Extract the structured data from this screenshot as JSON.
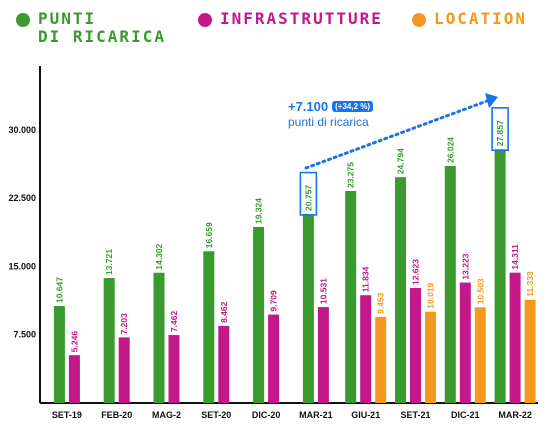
{
  "legend": [
    {
      "label": "Punti\ndi ricarica",
      "color": "#3a9a2e"
    },
    {
      "label": "Infrastrutture",
      "color": "#c2188a"
    },
    {
      "label": "Location",
      "color": "#f39a1e"
    }
  ],
  "annotation": {
    "value": "+7.100",
    "percent": "(+34,2 %)",
    "subtitle": "punti di ricarica"
  },
  "colors": {
    "accent": "#1a73e8"
  },
  "chart_data": {
    "type": "bar",
    "categories": [
      "SET-19",
      "FEB-20",
      "MAG-2",
      "SET-20",
      "DIC-20",
      "MAR-21",
      "GIU-21",
      "SET-21",
      "DIC-21",
      "MAR-22"
    ],
    "series": [
      {
        "name": "Punti di ricarica",
        "color": "#3a9a2e",
        "values": [
          10647,
          13721,
          14302,
          16659,
          19324,
          20757,
          23275,
          24794,
          26024,
          27857
        ],
        "labels": [
          "10.647",
          "13.721",
          "14.302",
          "16.659",
          "19.324",
          "20.757",
          "23.275",
          "24.794",
          "26.024",
          "27.857"
        ]
      },
      {
        "name": "Infrastrutture",
        "color": "#c2188a",
        "values": [
          5246,
          7203,
          7462,
          8462,
          9709,
          10531,
          11834,
          12623,
          13223,
          14311
        ],
        "labels": [
          "5.246",
          "7.203",
          "7.462",
          "8.462",
          "9.709",
          "10.531",
          "11.834",
          "12.623",
          "13.223",
          "14.311"
        ]
      },
      {
        "name": "Location",
        "color": "#f39a1e",
        "values": [
          null,
          null,
          null,
          null,
          null,
          null,
          9453,
          10019,
          10503,
          11333
        ],
        "labels": [
          null,
          null,
          null,
          null,
          null,
          null,
          "9.453",
          "10.019",
          "10.503",
          "11.333"
        ]
      }
    ],
    "yticks": [
      7500,
      15000,
      22500,
      30000
    ],
    "ytick_labels": [
      "7.500",
      "15.000",
      "22.500",
      "30.000"
    ],
    "ylim": [
      0,
      37000
    ],
    "highlighted": [
      5,
      9
    ],
    "grid": false
  }
}
